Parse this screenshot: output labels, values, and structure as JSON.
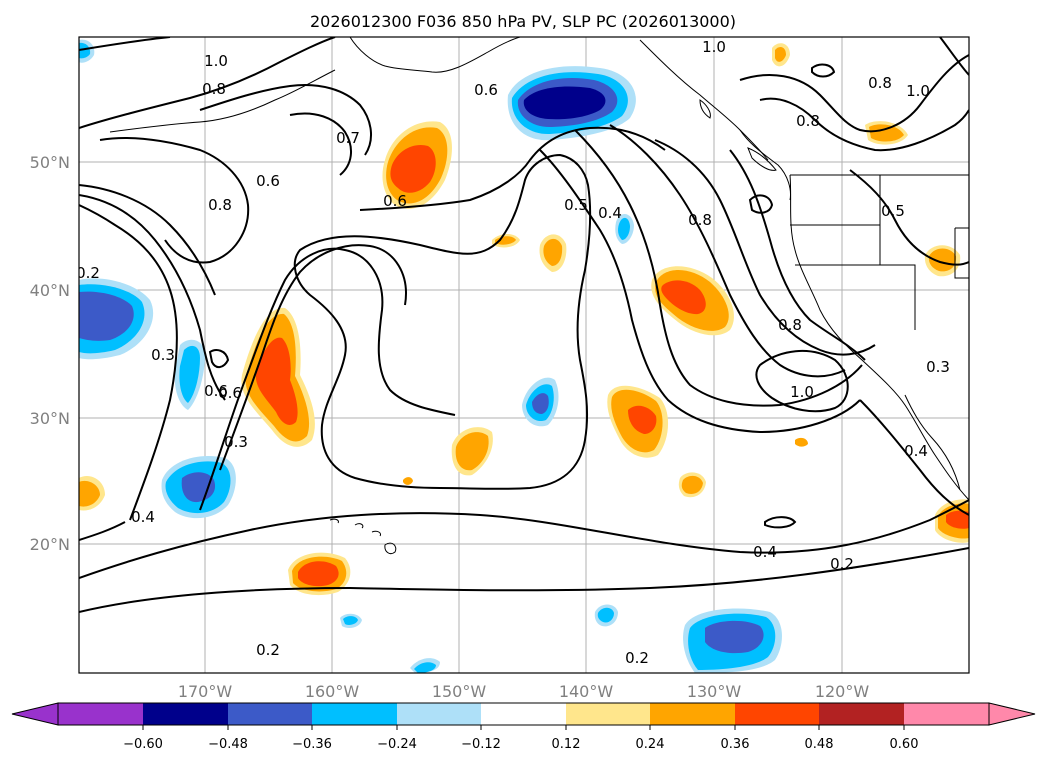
{
  "title": "2026012300 F036 850 hPa PV, SLP PC (2026013000)",
  "map": {
    "lat_labels": [
      "50°N",
      "40°N",
      "30°N",
      "20°N"
    ],
    "lon_labels": [
      "170°W",
      "160°W",
      "150°W",
      "140°W",
      "130°W",
      "120°W"
    ],
    "gridline_color": "#b0b0b0"
  },
  "colorbar": {
    "ticks": [
      "−0.60",
      "−0.48",
      "−0.36",
      "−0.24",
      "−0.12",
      "0.12",
      "0.24",
      "0.36",
      "0.48",
      "0.60"
    ],
    "colors": {
      "under": "#9932cc",
      "b1": "#00008b",
      "b2": "#3c5ac8",
      "b3": "#00bfff",
      "b4": "#aee0f8",
      "neutral": "#ffffff",
      "r1": "#ffe68c",
      "r2": "#ffa500",
      "r3": "#ff4500",
      "r4": "#b22222",
      "over": "#ff88aa"
    }
  },
  "contour_labels": [
    "1.0",
    "0.8",
    "0.6",
    "0.7",
    "0.6",
    "0.8",
    "0.6",
    "0.6",
    "0.5",
    "0.4",
    "0.8",
    "1.0",
    "0.8",
    "0.8",
    "1.0",
    "0.5",
    "0.2",
    "0.3",
    "0.6",
    "0.3",
    "0.4",
    "0.8",
    "1.0",
    "0.3",
    "0.4",
    "0.4",
    "0.2",
    "0.2",
    "0.2"
  ]
}
